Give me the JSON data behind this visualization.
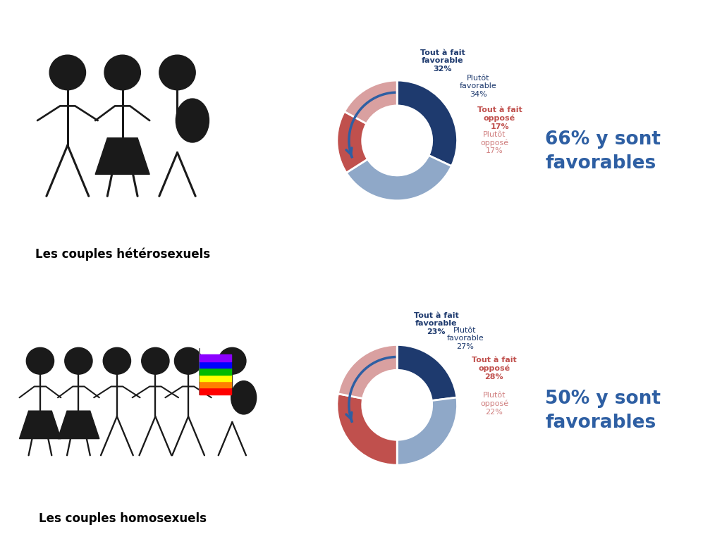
{
  "chart1": {
    "values": [
      32,
      34,
      17,
      17
    ],
    "colors": [
      "#1e3a6e",
      "#8fa8c8",
      "#c0504d",
      "#d9a0a0"
    ],
    "label_texts": [
      "Tout à fait\nfavorable\n32%",
      "Plutôt\nfavorable\n34%",
      "Tout à fait\nopposé\n17%",
      "Plutôt\nopposé\n17%"
    ],
    "label_bold": [
      true,
      false,
      true,
      false
    ],
    "label_colors": [
      "#1e3a6e",
      "#1e3a6e",
      "#c0504d",
      "#d08080"
    ],
    "summary": "66% y sont\nfavorables",
    "start_angle": 90
  },
  "chart2": {
    "values": [
      23,
      27,
      28,
      22
    ],
    "colors": [
      "#1e3a6e",
      "#8fa8c8",
      "#c0504d",
      "#d9a0a0"
    ],
    "label_texts": [
      "Tout à fait\nfavorable\n23%",
      "Plutôt\nfavorable\n27%",
      "Tout à fait\nopposé\n28%",
      "Plutôt\nopposé\n22%"
    ],
    "label_bold": [
      true,
      false,
      true,
      false
    ],
    "label_colors": [
      "#1e3a6e",
      "#1e3a6e",
      "#c0504d",
      "#d08080"
    ],
    "summary": "50% y sont\nfavorables",
    "start_angle": 90
  },
  "label1": "Les couples hétérosexuels",
  "label2": "Les couples homosexuels",
  "bg_color": "#ffffff",
  "summary_color": "#2e5fa3",
  "arrow_color": "#2e5fa3",
  "icon_color": "#1a1a1a"
}
